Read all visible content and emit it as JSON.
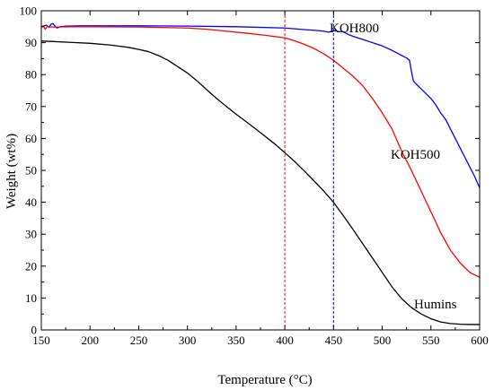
{
  "chart_data": {
    "type": "line",
    "title": "",
    "xlabel": "Temperature (°C)",
    "ylabel": "Weight (wt%)",
    "xlim": [
      150,
      600
    ],
    "ylim": [
      0,
      100
    ],
    "xticks": [
      150,
      200,
      250,
      300,
      350,
      400,
      450,
      500,
      550,
      600
    ],
    "yticks": [
      0,
      10,
      20,
      30,
      40,
      50,
      60,
      70,
      80,
      90,
      100
    ],
    "grid": false,
    "legend": "none",
    "series": [
      {
        "name": "KOH800",
        "color": "#0000ff",
        "points": [
          [
            150,
            95
          ],
          [
            152,
            95.2
          ],
          [
            155,
            95.5
          ],
          [
            158,
            94.8
          ],
          [
            160,
            95.8
          ],
          [
            162,
            96
          ],
          [
            164,
            95.2
          ],
          [
            166,
            94.6
          ],
          [
            170,
            95
          ],
          [
            175,
            95.2
          ],
          [
            190,
            95.3
          ],
          [
            210,
            95.3
          ],
          [
            250,
            95.3
          ],
          [
            300,
            95.2
          ],
          [
            350,
            95
          ],
          [
            400,
            94.6
          ],
          [
            420,
            94.1
          ],
          [
            430,
            93.9
          ],
          [
            440,
            93.6
          ],
          [
            445,
            93.3
          ],
          [
            450,
            93.8
          ],
          [
            455,
            93.5
          ],
          [
            460,
            93.4
          ],
          [
            465,
            92.6
          ],
          [
            470,
            92
          ],
          [
            480,
            91
          ],
          [
            490,
            90
          ],
          [
            500,
            89
          ],
          [
            510,
            87.6
          ],
          [
            520,
            86
          ],
          [
            525,
            85.2
          ],
          [
            528,
            84.5
          ],
          [
            530,
            81
          ],
          [
            532,
            78
          ],
          [
            535,
            77
          ],
          [
            540,
            75.5
          ],
          [
            545,
            74
          ],
          [
            550,
            72.5
          ],
          [
            555,
            70.5
          ],
          [
            560,
            68
          ],
          [
            565,
            66
          ],
          [
            570,
            63
          ],
          [
            575,
            60
          ],
          [
            580,
            57
          ],
          [
            585,
            54
          ],
          [
            590,
            51
          ],
          [
            595,
            48
          ],
          [
            600,
            44.5
          ]
        ]
      },
      {
        "name": "KOH500",
        "color": "#ff0000",
        "points": [
          [
            150,
            94.8
          ],
          [
            152,
            95.3
          ],
          [
            154,
            94.2
          ],
          [
            156,
            95.1
          ],
          [
            158,
            94.9
          ],
          [
            165,
            94.9
          ],
          [
            180,
            95
          ],
          [
            200,
            95
          ],
          [
            250,
            94.9
          ],
          [
            300,
            94.6
          ],
          [
            320,
            94.2
          ],
          [
            340,
            93.6
          ],
          [
            360,
            93
          ],
          [
            380,
            92.3
          ],
          [
            400,
            91.5
          ],
          [
            410,
            90.6
          ],
          [
            420,
            89.5
          ],
          [
            430,
            88.2
          ],
          [
            440,
            86.5
          ],
          [
            450,
            84.5
          ],
          [
            460,
            82
          ],
          [
            470,
            79.5
          ],
          [
            480,
            76.5
          ],
          [
            490,
            72.5
          ],
          [
            500,
            68
          ],
          [
            510,
            63
          ],
          [
            520,
            56
          ],
          [
            530,
            50
          ],
          [
            540,
            43.5
          ],
          [
            550,
            37
          ],
          [
            560,
            30.5
          ],
          [
            570,
            25
          ],
          [
            580,
            21
          ],
          [
            590,
            18
          ],
          [
            600,
            16.5
          ]
        ]
      },
      {
        "name": "Humins",
        "color": "#000000",
        "points": [
          [
            150,
            90.5
          ],
          [
            160,
            90.4
          ],
          [
            180,
            90.1
          ],
          [
            200,
            89.8
          ],
          [
            220,
            89.3
          ],
          [
            240,
            88.5
          ],
          [
            250,
            87.9
          ],
          [
            260,
            87.2
          ],
          [
            270,
            86
          ],
          [
            280,
            84.5
          ],
          [
            290,
            82.5
          ],
          [
            300,
            80.5
          ],
          [
            310,
            78
          ],
          [
            320,
            75.2
          ],
          [
            330,
            72.5
          ],
          [
            340,
            70
          ],
          [
            350,
            67.6
          ],
          [
            360,
            65.3
          ],
          [
            370,
            63
          ],
          [
            380,
            60.6
          ],
          [
            390,
            58.2
          ],
          [
            400,
            55.5
          ],
          [
            410,
            52.8
          ],
          [
            420,
            49.8
          ],
          [
            430,
            46.7
          ],
          [
            440,
            43.5
          ],
          [
            450,
            40
          ],
          [
            460,
            35.8
          ],
          [
            470,
            31.5
          ],
          [
            480,
            27
          ],
          [
            490,
            22.5
          ],
          [
            500,
            18
          ],
          [
            510,
            13.5
          ],
          [
            520,
            9.8
          ],
          [
            530,
            7
          ],
          [
            540,
            5
          ],
          [
            550,
            3.5
          ],
          [
            560,
            2.5
          ],
          [
            570,
            2
          ],
          [
            580,
            1.8
          ],
          [
            590,
            1.7
          ],
          [
            600,
            1.7
          ]
        ]
      }
    ],
    "reference_lines": [
      {
        "x": 400,
        "color": "#ff0000",
        "style": "dashed"
      },
      {
        "x": 450,
        "color": "#0000ff",
        "style": "dashed"
      }
    ]
  }
}
